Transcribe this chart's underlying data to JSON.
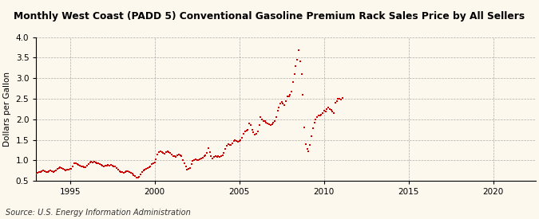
{
  "title": "Monthly West Coast (PADD 5) Conventional Gasoline Premium Rack Sales Price by All Sellers",
  "ylabel": "Dollars per Gallon",
  "source": "Source: U.S. Energy Information Administration",
  "background_color": "#fdf8ee",
  "marker_color": "#cc0000",
  "xlim": [
    1993.0,
    2022.5
  ],
  "ylim": [
    0.5,
    4.0
  ],
  "xticks": [
    1995,
    2000,
    2005,
    2010,
    2015,
    2020
  ],
  "yticks": [
    0.5,
    1.0,
    1.5,
    2.0,
    2.5,
    3.0,
    3.5,
    4.0
  ],
  "data": [
    [
      1993.0,
      0.68
    ],
    [
      1993.08,
      0.7
    ],
    [
      1993.17,
      0.72
    ],
    [
      1993.25,
      0.71
    ],
    [
      1993.33,
      0.73
    ],
    [
      1993.42,
      0.75
    ],
    [
      1993.5,
      0.73
    ],
    [
      1993.58,
      0.72
    ],
    [
      1993.67,
      0.72
    ],
    [
      1993.75,
      0.73
    ],
    [
      1993.83,
      0.75
    ],
    [
      1993.92,
      0.74
    ],
    [
      1994.0,
      0.72
    ],
    [
      1994.08,
      0.73
    ],
    [
      1994.17,
      0.76
    ],
    [
      1994.25,
      0.8
    ],
    [
      1994.33,
      0.82
    ],
    [
      1994.42,
      0.83
    ],
    [
      1994.5,
      0.82
    ],
    [
      1994.58,
      0.8
    ],
    [
      1994.67,
      0.78
    ],
    [
      1994.75,
      0.76
    ],
    [
      1994.83,
      0.77
    ],
    [
      1994.92,
      0.78
    ],
    [
      1995.0,
      0.79
    ],
    [
      1995.08,
      0.8
    ],
    [
      1995.17,
      0.85
    ],
    [
      1995.25,
      0.93
    ],
    [
      1995.33,
      0.92
    ],
    [
      1995.42,
      0.9
    ],
    [
      1995.5,
      0.88
    ],
    [
      1995.58,
      0.87
    ],
    [
      1995.67,
      0.86
    ],
    [
      1995.75,
      0.85
    ],
    [
      1995.83,
      0.84
    ],
    [
      1995.92,
      0.83
    ],
    [
      1996.0,
      0.87
    ],
    [
      1996.08,
      0.9
    ],
    [
      1996.17,
      0.95
    ],
    [
      1996.25,
      0.97
    ],
    [
      1996.33,
      0.95
    ],
    [
      1996.42,
      0.96
    ],
    [
      1996.5,
      0.95
    ],
    [
      1996.58,
      0.93
    ],
    [
      1996.67,
      0.92
    ],
    [
      1996.75,
      0.9
    ],
    [
      1996.83,
      0.88
    ],
    [
      1996.92,
      0.87
    ],
    [
      1997.0,
      0.86
    ],
    [
      1997.08,
      0.87
    ],
    [
      1997.17,
      0.87
    ],
    [
      1997.25,
      0.88
    ],
    [
      1997.33,
      0.87
    ],
    [
      1997.42,
      0.88
    ],
    [
      1997.5,
      0.87
    ],
    [
      1997.58,
      0.86
    ],
    [
      1997.67,
      0.85
    ],
    [
      1997.75,
      0.82
    ],
    [
      1997.83,
      0.78
    ],
    [
      1997.92,
      0.74
    ],
    [
      1998.0,
      0.72
    ],
    [
      1998.08,
      0.71
    ],
    [
      1998.17,
      0.7
    ],
    [
      1998.25,
      0.72
    ],
    [
      1998.33,
      0.73
    ],
    [
      1998.42,
      0.74
    ],
    [
      1998.5,
      0.72
    ],
    [
      1998.58,
      0.69
    ],
    [
      1998.67,
      0.67
    ],
    [
      1998.75,
      0.64
    ],
    [
      1998.83,
      0.62
    ],
    [
      1998.92,
      0.58
    ],
    [
      1999.0,
      0.58
    ],
    [
      1999.08,
      0.6
    ],
    [
      1999.17,
      0.65
    ],
    [
      1999.25,
      0.72
    ],
    [
      1999.33,
      0.76
    ],
    [
      1999.42,
      0.78
    ],
    [
      1999.5,
      0.79
    ],
    [
      1999.58,
      0.82
    ],
    [
      1999.67,
      0.84
    ],
    [
      1999.75,
      0.86
    ],
    [
      1999.83,
      0.9
    ],
    [
      1999.92,
      0.92
    ],
    [
      2000.0,
      0.95
    ],
    [
      2000.08,
      1.02
    ],
    [
      2000.17,
      1.15
    ],
    [
      2000.25,
      1.2
    ],
    [
      2000.33,
      1.22
    ],
    [
      2000.42,
      1.2
    ],
    [
      2000.5,
      1.18
    ],
    [
      2000.58,
      1.17
    ],
    [
      2000.67,
      1.2
    ],
    [
      2000.75,
      1.22
    ],
    [
      2000.83,
      1.2
    ],
    [
      2000.92,
      1.18
    ],
    [
      2001.0,
      1.15
    ],
    [
      2001.08,
      1.1
    ],
    [
      2001.17,
      1.1
    ],
    [
      2001.25,
      1.08
    ],
    [
      2001.33,
      1.12
    ],
    [
      2001.42,
      1.15
    ],
    [
      2001.5,
      1.13
    ],
    [
      2001.58,
      1.1
    ],
    [
      2001.67,
      1.0
    ],
    [
      2001.75,
      0.92
    ],
    [
      2001.83,
      0.85
    ],
    [
      2001.92,
      0.78
    ],
    [
      2002.0,
      0.8
    ],
    [
      2002.08,
      0.82
    ],
    [
      2002.17,
      0.9
    ],
    [
      2002.25,
      0.98
    ],
    [
      2002.33,
      1.0
    ],
    [
      2002.42,
      1.02
    ],
    [
      2002.5,
      1.0
    ],
    [
      2002.58,
      1.0
    ],
    [
      2002.67,
      1.02
    ],
    [
      2002.75,
      1.05
    ],
    [
      2002.83,
      1.07
    ],
    [
      2002.92,
      1.1
    ],
    [
      2003.0,
      1.12
    ],
    [
      2003.08,
      1.18
    ],
    [
      2003.17,
      1.3
    ],
    [
      2003.25,
      1.2
    ],
    [
      2003.33,
      1.1
    ],
    [
      2003.42,
      1.05
    ],
    [
      2003.5,
      1.08
    ],
    [
      2003.58,
      1.1
    ],
    [
      2003.67,
      1.08
    ],
    [
      2003.75,
      1.1
    ],
    [
      2003.83,
      1.08
    ],
    [
      2003.92,
      1.1
    ],
    [
      2004.0,
      1.12
    ],
    [
      2004.08,
      1.18
    ],
    [
      2004.17,
      1.28
    ],
    [
      2004.25,
      1.35
    ],
    [
      2004.33,
      1.4
    ],
    [
      2004.42,
      1.38
    ],
    [
      2004.5,
      1.38
    ],
    [
      2004.58,
      1.42
    ],
    [
      2004.67,
      1.48
    ],
    [
      2004.75,
      1.5
    ],
    [
      2004.83,
      1.48
    ],
    [
      2004.92,
      1.45
    ],
    [
      2005.0,
      1.48
    ],
    [
      2005.08,
      1.5
    ],
    [
      2005.17,
      1.55
    ],
    [
      2005.25,
      1.65
    ],
    [
      2005.33,
      1.7
    ],
    [
      2005.42,
      1.72
    ],
    [
      2005.5,
      1.75
    ],
    [
      2005.58,
      1.9
    ],
    [
      2005.67,
      1.85
    ],
    [
      2005.75,
      1.75
    ],
    [
      2005.83,
      1.68
    ],
    [
      2005.92,
      1.62
    ],
    [
      2006.0,
      1.65
    ],
    [
      2006.08,
      1.7
    ],
    [
      2006.17,
      1.85
    ],
    [
      2006.25,
      2.05
    ],
    [
      2006.33,
      2.0
    ],
    [
      2006.42,
      1.95
    ],
    [
      2006.5,
      1.95
    ],
    [
      2006.58,
      1.92
    ],
    [
      2006.67,
      1.9
    ],
    [
      2006.75,
      1.88
    ],
    [
      2006.83,
      1.85
    ],
    [
      2006.92,
      1.88
    ],
    [
      2007.0,
      1.92
    ],
    [
      2007.08,
      1.95
    ],
    [
      2007.17,
      2.05
    ],
    [
      2007.25,
      2.2
    ],
    [
      2007.33,
      2.28
    ],
    [
      2007.42,
      2.38
    ],
    [
      2007.5,
      2.42
    ],
    [
      2007.58,
      2.38
    ],
    [
      2007.67,
      2.35
    ],
    [
      2007.75,
      2.45
    ],
    [
      2007.83,
      2.55
    ],
    [
      2007.92,
      2.55
    ],
    [
      2008.0,
      2.6
    ],
    [
      2008.08,
      2.68
    ],
    [
      2008.17,
      2.9
    ],
    [
      2008.25,
      3.1
    ],
    [
      2008.33,
      3.3
    ],
    [
      2008.42,
      3.45
    ],
    [
      2008.5,
      3.68
    ],
    [
      2008.58,
      3.42
    ],
    [
      2008.67,
      3.1
    ],
    [
      2008.75,
      2.6
    ],
    [
      2008.83,
      1.8
    ],
    [
      2008.92,
      1.4
    ],
    [
      2009.0,
      1.28
    ],
    [
      2009.08,
      1.22
    ],
    [
      2009.17,
      1.38
    ],
    [
      2009.25,
      1.58
    ],
    [
      2009.33,
      1.78
    ],
    [
      2009.42,
      1.92
    ],
    [
      2009.5,
      2.0
    ],
    [
      2009.58,
      2.05
    ],
    [
      2009.67,
      2.1
    ],
    [
      2009.75,
      2.1
    ],
    [
      2009.83,
      2.12
    ],
    [
      2009.92,
      2.15
    ],
    [
      2010.0,
      2.2
    ],
    [
      2010.08,
      2.18
    ],
    [
      2010.17,
      2.25
    ],
    [
      2010.25,
      2.28
    ],
    [
      2010.33,
      2.25
    ],
    [
      2010.42,
      2.22
    ],
    [
      2010.5,
      2.18
    ],
    [
      2010.58,
      2.15
    ],
    [
      2010.67,
      2.4
    ],
    [
      2010.75,
      2.45
    ],
    [
      2010.83,
      2.5
    ],
    [
      2010.92,
      2.5
    ],
    [
      2011.0,
      2.48
    ],
    [
      2011.08,
      2.52
    ]
  ]
}
